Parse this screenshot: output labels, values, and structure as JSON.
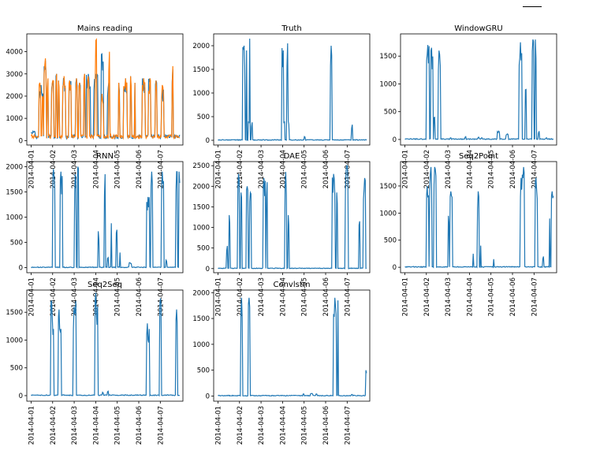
{
  "colors": {
    "blue": "#1f77b4",
    "orange": "#ff7f0e"
  },
  "chart_data": [
    {
      "type": "line",
      "title": "Mains reading",
      "x_ticks": [
        "2014-04-01",
        "2014-04-02",
        "2014-04-03",
        "2014-04-04",
        "2014-04-05",
        "2014-04-06",
        "2014-04-07"
      ],
      "ylim": [
        -200,
        4800
      ],
      "y_ticks": [
        0,
        1000,
        2000,
        3000,
        4000
      ],
      "series": [
        {
          "color": "#1f77b4",
          "spikes": [
            [
              0.0,
              0.2,
              420
            ],
            [
              0.35,
              0.55,
              2500
            ],
            [
              0.6,
              0.7,
              3600
            ],
            [
              0.75,
              0.8,
              2600
            ],
            [
              0.95,
              1.05,
              2700
            ],
            [
              1.15,
              1.2,
              3000
            ],
            [
              1.25,
              1.3,
              2700
            ],
            [
              1.45,
              1.6,
              2800
            ],
            [
              1.75,
              1.85,
              2700
            ],
            [
              2.05,
              2.15,
              2800
            ],
            [
              2.2,
              2.3,
              2600
            ],
            [
              2.45,
              2.5,
              3000
            ],
            [
              2.55,
              2.75,
              3000
            ],
            [
              2.9,
              3.1,
              3000
            ],
            [
              3.25,
              3.35,
              3900
            ],
            [
              3.55,
              3.65,
              2600
            ],
            [
              4.05,
              4.1,
              2600
            ],
            [
              4.3,
              4.45,
              2800
            ],
            [
              4.6,
              4.65,
              2900
            ],
            [
              4.8,
              4.85,
              2600
            ],
            [
              5.15,
              5.3,
              2800
            ],
            [
              5.45,
              5.55,
              2800
            ],
            [
              5.75,
              5.85,
              2700
            ],
            [
              6.05,
              6.15,
              2300
            ],
            [
              6.55,
              6.6,
              3200
            ]
          ]
        },
        {
          "color": "#ff7f0e",
          "spikes": [
            [
              0.35,
              0.45,
              2600
            ],
            [
              0.5,
              0.55,
              2000
            ],
            [
              0.6,
              0.7,
              3700
            ],
            [
              0.75,
              0.8,
              2800
            ],
            [
              0.95,
              1.05,
              2700
            ],
            [
              1.15,
              1.2,
              3000
            ],
            [
              1.25,
              1.3,
              2700
            ],
            [
              1.45,
              1.6,
              2900
            ],
            [
              1.75,
              1.85,
              2700
            ],
            [
              2.05,
              2.15,
              2800
            ],
            [
              2.2,
              2.3,
              2600
            ],
            [
              2.45,
              2.5,
              3000
            ],
            [
              2.6,
              2.7,
              2900
            ],
            [
              2.95,
              3.05,
              2900
            ],
            [
              3.0,
              3.05,
              4550
            ],
            [
              3.25,
              3.35,
              2100
            ],
            [
              3.6,
              3.65,
              4000
            ],
            [
              4.05,
              4.1,
              2600
            ],
            [
              4.3,
              4.45,
              2800
            ],
            [
              4.6,
              4.65,
              2900
            ],
            [
              4.8,
              4.85,
              2600
            ],
            [
              5.15,
              5.3,
              2800
            ],
            [
              5.45,
              5.55,
              2800
            ],
            [
              5.75,
              5.85,
              2700
            ],
            [
              6.05,
              6.15,
              2500
            ],
            [
              6.55,
              6.6,
              3350
            ]
          ]
        }
      ]
    },
    {
      "type": "line",
      "title": "Truth",
      "x_ticks": [
        "2014-04-01",
        "2014-04-02",
        "2014-04-03",
        "2014-04-04",
        "2014-04-05",
        "2014-04-06",
        "2014-04-07"
      ],
      "ylim": [
        -100,
        2250
      ],
      "y_ticks": [
        0,
        500,
        1000,
        1500,
        2000
      ],
      "series": [
        {
          "color": "#1f77b4",
          "spikes": [
            [
              1.15,
              1.25,
              2000
            ],
            [
              1.3,
              1.35,
              1900
            ],
            [
              1.4,
              1.45,
              400
            ],
            [
              1.45,
              1.5,
              2150
            ],
            [
              1.55,
              1.6,
              380
            ],
            [
              2.95,
              3.0,
              1950
            ],
            [
              3.0,
              3.05,
              1900
            ],
            [
              3.05,
              3.1,
              400
            ],
            [
              3.2,
              3.25,
              2050
            ],
            [
              3.25,
              3.3,
              400
            ],
            [
              4.0,
              4.05,
              80
            ],
            [
              5.2,
              5.3,
              2000
            ],
            [
              6.2,
              6.25,
              330
            ]
          ]
        }
      ]
    },
    {
      "type": "line",
      "title": "WindowGRU",
      "x_ticks": [
        "2014-04-01",
        "2014-04-02",
        "2014-04-03",
        "2014-04-04",
        "2014-04-05",
        "2014-04-06",
        "2014-04-07"
      ],
      "ylim": [
        -100,
        1900
      ],
      "y_ticks": [
        0,
        500,
        1000,
        1500
      ],
      "series": [
        {
          "color": "#1f77b4",
          "spikes": [
            [
              1.0,
              1.15,
              1700
            ],
            [
              1.2,
              1.3,
              1650
            ],
            [
              1.35,
              1.4,
              400
            ],
            [
              1.55,
              1.65,
              1600
            ],
            [
              2.1,
              2.15,
              30
            ],
            [
              2.8,
              2.85,
              50
            ],
            [
              3.4,
              3.45,
              40
            ],
            [
              3.55,
              3.6,
              30
            ],
            [
              4.3,
              4.4,
              150
            ],
            [
              4.7,
              4.8,
              100
            ],
            [
              5.3,
              5.45,
              1750
            ],
            [
              5.6,
              5.65,
              900
            ],
            [
              5.9,
              6.0,
              1800
            ],
            [
              6.05,
              6.1,
              1800
            ],
            [
              6.2,
              6.25,
              150
            ],
            [
              6.55,
              6.6,
              30
            ]
          ]
        }
      ]
    },
    {
      "type": "line",
      "title": "RNN",
      "x_ticks": [
        "2014-04-01",
        "2014-04-02",
        "2014-04-03",
        "2014-04-04",
        "2014-04-05",
        "2014-04-06",
        "2014-04-07"
      ],
      "ylim": [
        -100,
        2100
      ],
      "y_ticks": [
        0,
        500,
        1000,
        1500,
        2000
      ],
      "series": [
        {
          "color": "#1f77b4",
          "spikes": [
            [
              1.0,
              1.1,
              1950
            ],
            [
              1.35,
              1.45,
              1900
            ],
            [
              2.0,
              2.1,
              1850
            ],
            [
              2.15,
              2.2,
              2000
            ],
            [
              3.1,
              3.15,
              720
            ],
            [
              3.4,
              3.45,
              1850
            ],
            [
              3.55,
              3.6,
              200
            ],
            [
              3.7,
              3.75,
              880
            ],
            [
              3.95,
              4.0,
              750
            ],
            [
              4.1,
              4.15,
              300
            ],
            [
              4.55,
              4.65,
              100
            ],
            [
              5.35,
              5.5,
              1400
            ],
            [
              5.55,
              5.65,
              1900
            ],
            [
              6.05,
              6.15,
              1900
            ],
            [
              6.25,
              6.3,
              150
            ],
            [
              6.7,
              6.8,
              1900
            ],
            [
              6.85,
              6.9,
              1900
            ]
          ]
        }
      ]
    },
    {
      "type": "line",
      "title": "DAE",
      "x_ticks": [
        "2014-04-01",
        "2014-04-02",
        "2014-04-03",
        "2014-04-04",
        "2014-04-05",
        "2014-04-06",
        "2014-04-07"
      ],
      "ylim": [
        -100,
        2600
      ],
      "y_ticks": [
        0,
        500,
        1000,
        1500,
        2000,
        2500
      ],
      "series": [
        {
          "color": "#1f77b4",
          "spikes": [
            [
              0.4,
              0.45,
              550
            ],
            [
              0.5,
              0.55,
              1300
            ],
            [
              0.9,
              1.0,
              2300
            ],
            [
              1.05,
              1.1,
              1850
            ],
            [
              1.3,
              1.4,
              2000
            ],
            [
              1.45,
              1.55,
              1850
            ],
            [
              2.1,
              2.2,
              2200
            ],
            [
              2.25,
              2.3,
              2100
            ],
            [
              3.1,
              3.2,
              2350
            ],
            [
              3.25,
              3.3,
              1300
            ],
            [
              5.3,
              5.45,
              2300
            ],
            [
              5.5,
              5.55,
              1850
            ],
            [
              5.9,
              6.05,
              2500
            ],
            [
              6.55,
              6.6,
              1150
            ],
            [
              6.75,
              6.85,
              2200
            ]
          ]
        }
      ]
    },
    {
      "type": "line",
      "title": "Seq2Point",
      "x_ticks": [
        "2014-04-01",
        "2014-04-02",
        "2014-04-03",
        "2014-04-04",
        "2014-04-05",
        "2014-04-06",
        "2014-04-07"
      ],
      "ylim": [
        -100,
        1950
      ],
      "y_ticks": [
        0,
        500,
        1000,
        1500
      ],
      "series": [
        {
          "color": "#1f77b4",
          "spikes": [
            [
              1.0,
              1.1,
              1500
            ],
            [
              1.15,
              1.25,
              1850
            ],
            [
              1.35,
              1.45,
              1850
            ],
            [
              2.0,
              2.05,
              950
            ],
            [
              2.1,
              2.2,
              1400
            ],
            [
              3.15,
              3.2,
              250
            ],
            [
              3.35,
              3.45,
              1400
            ],
            [
              3.5,
              3.55,
              400
            ],
            [
              4.1,
              4.15,
              150
            ],
            [
              5.35,
              5.45,
              1650
            ],
            [
              5.45,
              5.55,
              1850
            ],
            [
              6.05,
              6.15,
              1650
            ],
            [
              6.4,
              6.45,
              200
            ],
            [
              6.7,
              6.75,
              900
            ],
            [
              6.8,
              6.9,
              1400
            ]
          ]
        }
      ]
    },
    {
      "type": "line",
      "title": "Seq2Seq",
      "x_ticks": [
        "2014-04-01",
        "2014-04-02",
        "2014-04-03",
        "2014-04-04",
        "2014-04-05",
        "2014-04-06",
        "2014-04-07"
      ],
      "ylim": [
        -100,
        1900
      ],
      "y_ticks": [
        0,
        500,
        1000,
        1500
      ],
      "series": [
        {
          "color": "#1f77b4",
          "spikes": [
            [
              0.9,
              1.0,
              1700
            ],
            [
              1.0,
              1.05,
              1200
            ],
            [
              1.25,
              1.35,
              1550
            ],
            [
              1.35,
              1.4,
              1200
            ],
            [
              1.95,
              2.05,
              1600
            ],
            [
              2.05,
              2.1,
              1700
            ],
            [
              2.95,
              3.05,
              1850
            ],
            [
              3.05,
              3.1,
              1600
            ],
            [
              3.3,
              3.35,
              60
            ],
            [
              3.55,
              3.6,
              80
            ],
            [
              5.35,
              5.45,
              1300
            ],
            [
              5.45,
              5.5,
              1200
            ],
            [
              5.95,
              6.05,
              1750
            ],
            [
              6.7,
              6.8,
              1550
            ]
          ]
        }
      ]
    },
    {
      "type": "line",
      "title": "Convlstm",
      "x_ticks": [
        "2014-04-01",
        "2014-04-02",
        "2014-04-03",
        "2014-04-04",
        "2014-04-05",
        "2014-04-06",
        "2014-04-07"
      ],
      "ylim": [
        -100,
        2050
      ],
      "y_ticks": [
        0,
        500,
        1000,
        1500,
        2000
      ],
      "series": [
        {
          "color": "#1f77b4",
          "spikes": [
            [
              1.05,
              1.15,
              1900
            ],
            [
              1.4,
              1.5,
              1900
            ],
            [
              3.95,
              4.0,
              40
            ],
            [
              4.3,
              4.4,
              50
            ],
            [
              4.55,
              4.6,
              40
            ],
            [
              5.35,
              5.5,
              1900
            ],
            [
              5.55,
              5.6,
              1850
            ],
            [
              6.2,
              6.25,
              30
            ],
            [
              6.85,
              6.9,
              500
            ]
          ]
        }
      ]
    }
  ]
}
